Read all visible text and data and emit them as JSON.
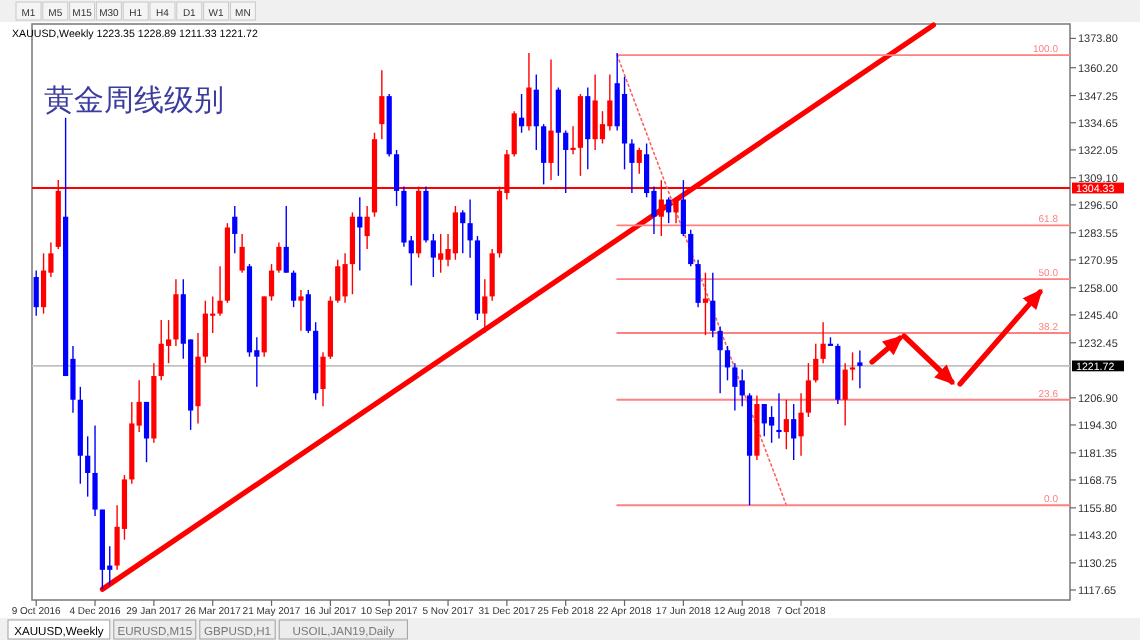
{
  "chart_data": {
    "type": "candlestick",
    "title": "黄金周线级别",
    "subtitle": "XAUUSD,Weekly  1223.35 1228.89 1211.33 1221.72",
    "annotations": [
      "M1",
      "M5",
      "M15",
      "M30",
      "H1",
      "H4",
      "D1",
      "W1",
      "MN",
      "XAUUSD,Weekly",
      "EURUSD,M15",
      "GBPUSD,H1",
      "USOIL,JAN19,Daily"
    ],
    "xlim": [
      "2016-10-05",
      "2019-06-20"
    ],
    "ylim": [
      1113.0,
      1380.5
    ],
    "xticks": [
      {
        "value": "2016-10-09",
        "label": "9 Oct 2016"
      },
      {
        "value": "2016-12-04",
        "label": "4 Dec 2016"
      },
      {
        "value": "2017-01-29",
        "label": "29 Jan 2017"
      },
      {
        "value": "2017-03-26",
        "label": "26 Mar 2017"
      },
      {
        "value": "2017-05-21",
        "label": "21 May 2017"
      },
      {
        "value": "2017-07-16",
        "label": "16 Jul 2017"
      },
      {
        "value": "2017-09-10",
        "label": "10 Sep 2017"
      },
      {
        "value": "2017-11-05",
        "label": "5 Nov 2017"
      },
      {
        "value": "2017-12-31",
        "label": "31 Dec 2017"
      },
      {
        "value": "2018-02-25",
        "label": "25 Feb 2018"
      },
      {
        "value": "2018-04-22",
        "label": "22 Apr 2018"
      },
      {
        "value": "2018-06-17",
        "label": "17 Jun 2018"
      },
      {
        "value": "2018-08-12",
        "label": "12 Aug 2018"
      },
      {
        "value": "2018-10-07",
        "label": "7 Oct 2018"
      }
    ],
    "yticks": [
      {
        "value": 1373.8,
        "label": "1373.80"
      },
      {
        "value": 1360.2,
        "label": "1360.20"
      },
      {
        "value": 1347.25,
        "label": "1347.25"
      },
      {
        "value": 1334.65,
        "label": "1334.65"
      },
      {
        "value": 1322.05,
        "label": "1322.05"
      },
      {
        "value": 1309.1,
        "label": "1309.10"
      },
      {
        "value": 1296.5,
        "label": "1296.50"
      },
      {
        "value": 1283.55,
        "label": "1283.55"
      },
      {
        "value": 1270.95,
        "label": "1270.95"
      },
      {
        "value": 1258.0,
        "label": "1258.00"
      },
      {
        "value": 1245.4,
        "label": "1245.40"
      },
      {
        "value": 1232.45,
        "label": "1232.45"
      },
      {
        "value": 1206.9,
        "label": "1206.90"
      },
      {
        "value": 1194.3,
        "label": "1194.30"
      },
      {
        "value": 1181.35,
        "label": "1181.35"
      },
      {
        "value": 1168.75,
        "label": "1168.75"
      },
      {
        "value": 1155.8,
        "label": "1155.80"
      },
      {
        "value": 1143.2,
        "label": "1143.20"
      },
      {
        "value": 1130.25,
        "label": "1130.25"
      },
      {
        "value": 1117.65,
        "label": "1117.65"
      }
    ],
    "ref_lines": [
      {
        "axis": "y",
        "value": 1304.33,
        "label": "1304.33",
        "color": "#ff0000"
      },
      {
        "axis": "y",
        "value": 1221.72,
        "label": "1221.72",
        "color": "#c0c0c0"
      }
    ],
    "x": [
      "2016-10-09",
      "2016-10-16",
      "2016-10-23",
      "2016-10-30",
      "2016-11-06",
      "2016-11-13",
      "2016-11-20",
      "2016-11-27",
      "2016-12-04",
      "2016-12-11",
      "2016-12-18",
      "2016-12-25",
      "2017-01-01",
      "2017-01-08",
      "2017-01-15",
      "2017-01-22",
      "2017-01-29",
      "2017-02-05",
      "2017-02-12",
      "2017-02-19",
      "2017-02-26",
      "2017-03-05",
      "2017-03-12",
      "2017-03-19",
      "2017-03-26",
      "2017-04-02",
      "2017-04-09",
      "2017-04-16",
      "2017-04-23",
      "2017-04-30",
      "2017-05-07",
      "2017-05-14",
      "2017-05-21",
      "2017-05-28",
      "2017-06-04",
      "2017-06-11",
      "2017-06-18",
      "2017-06-25",
      "2017-07-02",
      "2017-07-09",
      "2017-07-16",
      "2017-07-23",
      "2017-07-30",
      "2017-08-06",
      "2017-08-13",
      "2017-08-20",
      "2017-08-27",
      "2017-09-03",
      "2017-09-10",
      "2017-09-17",
      "2017-09-24",
      "2017-10-01",
      "2017-10-08",
      "2017-10-15",
      "2017-10-22",
      "2017-10-29",
      "2017-11-05",
      "2017-11-12",
      "2017-11-19",
      "2017-11-26",
      "2017-12-03",
      "2017-12-10",
      "2017-12-17",
      "2017-12-24",
      "2017-12-31",
      "2018-01-07",
      "2018-01-14",
      "2018-01-21",
      "2018-01-28",
      "2018-02-04",
      "2018-02-11",
      "2018-02-18",
      "2018-02-25",
      "2018-03-04",
      "2018-03-11",
      "2018-03-18",
      "2018-03-25",
      "2018-04-01",
      "2018-04-08",
      "2018-04-15",
      "2018-04-22",
      "2018-04-29",
      "2018-05-06",
      "2018-05-13",
      "2018-05-20",
      "2018-05-27",
      "2018-06-03",
      "2018-06-10",
      "2018-06-17",
      "2018-06-24",
      "2018-07-01",
      "2018-07-08",
      "2018-07-15",
      "2018-07-22",
      "2018-07-29",
      "2018-08-05",
      "2018-08-12",
      "2018-08-19",
      "2018-08-26",
      "2018-09-02",
      "2018-09-09",
      "2018-09-16",
      "2018-09-23",
      "2018-09-30",
      "2018-10-07",
      "2018-10-14",
      "2018-10-21",
      "2018-10-28",
      "2018-11-04",
      "2018-11-11",
      "2018-11-18",
      "2018-11-25",
      "2018-12-02"
    ],
    "ohlc": [
      [
        1263,
        1266,
        1245,
        1249
      ],
      [
        1249,
        1274,
        1246,
        1266
      ],
      [
        1265,
        1279,
        1263,
        1274
      ],
      [
        1277,
        1308,
        1276,
        1303
      ],
      [
        1291,
        1337,
        1217,
        1217
      ],
      [
        1225,
        1231,
        1200,
        1206
      ],
      [
        1206,
        1212,
        1167,
        1180
      ],
      [
        1180,
        1189,
        1161,
        1172
      ],
      [
        1172,
        1194,
        1152,
        1155
      ],
      [
        1155,
        1155,
        1118,
        1127
      ],
      [
        1129,
        1138,
        1120,
        1127
      ],
      [
        1129,
        1157,
        1127,
        1147
      ],
      [
        1146,
        1171,
        1141,
        1169
      ],
      [
        1169,
        1205,
        1167,
        1195
      ],
      [
        1194,
        1215,
        1191,
        1205
      ],
      [
        1205,
        1205,
        1177,
        1188
      ],
      [
        1188,
        1223,
        1186,
        1217
      ],
      [
        1217,
        1243,
        1215,
        1232
      ],
      [
        1231,
        1243,
        1223,
        1234
      ],
      [
        1234,
        1262,
        1231,
        1255
      ],
      [
        1255,
        1262,
        1225,
        1232
      ],
      [
        1234,
        1234,
        1192,
        1201
      ],
      [
        1203,
        1237,
        1195,
        1226
      ],
      [
        1226,
        1252,
        1223,
        1246
      ],
      [
        1245,
        1254,
        1237,
        1246
      ],
      [
        1246,
        1268,
        1245,
        1252
      ],
      [
        1252,
        1288,
        1251,
        1286
      ],
      [
        1291,
        1296,
        1274,
        1283
      ],
      [
        1266,
        1283,
        1265,
        1277
      ],
      [
        1268,
        1269,
        1226,
        1228
      ],
      [
        1229,
        1235,
        1212,
        1226
      ],
      [
        1228,
        1254,
        1226,
        1254
      ],
      [
        1254,
        1269,
        1252,
        1266
      ],
      [
        1266,
        1279,
        1265,
        1277
      ],
      [
        1277,
        1296,
        1265,
        1265
      ],
      [
        1265,
        1266,
        1249,
        1252
      ],
      [
        1252,
        1257,
        1238,
        1254
      ],
      [
        1255,
        1257,
        1237,
        1238
      ],
      [
        1238,
        1242,
        1206,
        1209
      ],
      [
        1211,
        1228,
        1203,
        1226
      ],
      [
        1226,
        1254,
        1225,
        1252
      ],
      [
        1252,
        1271,
        1251,
        1268
      ],
      [
        1254,
        1274,
        1251,
        1269
      ],
      [
        1269,
        1293,
        1255,
        1291
      ],
      [
        1291,
        1300,
        1266,
        1286
      ],
      [
        1282,
        1296,
        1276,
        1291
      ],
      [
        1293,
        1330,
        1291,
        1327
      ],
      [
        1334,
        1359,
        1327,
        1347
      ],
      [
        1347,
        1348,
        1319,
        1320
      ],
      [
        1320,
        1322,
        1296,
        1303
      ],
      [
        1303,
        1305,
        1277,
        1279
      ],
      [
        1280,
        1282,
        1259,
        1274
      ],
      [
        1274,
        1305,
        1272,
        1303
      ],
      [
        1303,
        1305,
        1279,
        1280
      ],
      [
        1280,
        1283,
        1263,
        1272
      ],
      [
        1271,
        1283,
        1265,
        1274
      ],
      [
        1271,
        1283,
        1268,
        1276
      ],
      [
        1274,
        1296,
        1271,
        1293
      ],
      [
        1293,
        1294,
        1274,
        1288
      ],
      [
        1288,
        1299,
        1272,
        1280
      ],
      [
        1280,
        1282,
        1243,
        1246
      ],
      [
        1246,
        1262,
        1237,
        1254
      ],
      [
        1254,
        1276,
        1252,
        1274
      ],
      [
        1274,
        1305,
        1272,
        1303
      ],
      [
        1302,
        1322,
        1299,
        1320
      ],
      [
        1320,
        1340,
        1319,
        1339
      ],
      [
        1337,
        1348,
        1330,
        1333
      ],
      [
        1333,
        1367,
        1331,
        1351
      ],
      [
        1350,
        1357,
        1322,
        1333
      ],
      [
        1333,
        1334,
        1306,
        1316
      ],
      [
        1316,
        1364,
        1308,
        1331
      ],
      [
        1350,
        1351,
        1310,
        1330
      ],
      [
        1330,
        1331,
        1302,
        1322
      ],
      [
        1322,
        1333,
        1320,
        1323
      ],
      [
        1323,
        1348,
        1310,
        1347
      ],
      [
        1347,
        1351,
        1313,
        1327
      ],
      [
        1327,
        1357,
        1322,
        1345
      ],
      [
        1327,
        1340,
        1325,
        1334
      ],
      [
        1333,
        1357,
        1331,
        1345
      ],
      [
        1353,
        1367,
        1331,
        1333
      ],
      [
        1348,
        1356,
        1313,
        1325
      ],
      [
        1325,
        1327,
        1302,
        1316
      ],
      [
        1316,
        1323,
        1311,
        1322
      ],
      [
        1320,
        1325,
        1300,
        1302
      ],
      [
        1303,
        1305,
        1283,
        1291
      ],
      [
        1291,
        1308,
        1282,
        1299
      ],
      [
        1299,
        1300,
        1288,
        1293
      ],
      [
        1293,
        1300,
        1288,
        1299
      ],
      [
        1299,
        1308,
        1282,
        1283
      ],
      [
        1283,
        1285,
        1268,
        1269
      ],
      [
        1269,
        1271,
        1249,
        1251
      ],
      [
        1251,
        1265,
        1236,
        1253
      ],
      [
        1252,
        1265,
        1235,
        1238
      ],
      [
        1238,
        1240,
        1209,
        1229
      ],
      [
        1229,
        1231,
        1215,
        1221
      ],
      [
        1221,
        1223,
        1201,
        1212
      ],
      [
        1215,
        1220,
        1203,
        1208
      ],
      [
        1208,
        1209,
        1157,
        1180
      ],
      [
        1180,
        1208,
        1178,
        1204
      ],
      [
        1204,
        1204,
        1189,
        1195
      ],
      [
        1198,
        1203,
        1186,
        1194
      ],
      [
        1192,
        1209,
        1188,
        1191
      ],
      [
        1191,
        1206,
        1183,
        1197
      ],
      [
        1197,
        1204,
        1178,
        1188
      ],
      [
        1189,
        1209,
        1180,
        1200
      ],
      [
        1200,
        1223,
        1198,
        1215
      ],
      [
        1215,
        1232,
        1214,
        1225
      ],
      [
        1225,
        1242,
        1223,
        1232
      ],
      [
        1232,
        1235,
        1231,
        1231
      ],
      [
        1231,
        1232,
        1204,
        1206
      ],
      [
        1206,
        1223,
        1194,
        1220
      ],
      [
        1220,
        1228,
        1215,
        1221
      ],
      [
        1223.35,
        1228.89,
        1211.33,
        1221.72
      ]
    ],
    "colors": [
      "#0000ff",
      "#ff0000",
      "#ff0000",
      "#ff0000",
      "#0000ff",
      "#0000ff",
      "#0000ff",
      "#0000ff",
      "#0000ff",
      "#0000ff",
      "#0000ff",
      "#ff0000",
      "#ff0000",
      "#ff0000",
      "#ff0000",
      "#0000ff",
      "#ff0000",
      "#ff0000",
      "#ff0000",
      "#ff0000",
      "#0000ff",
      "#0000ff",
      "#ff0000",
      "#ff0000",
      "#ff0000",
      "#ff0000",
      "#ff0000",
      "#0000ff",
      "#ff0000",
      "#0000ff",
      "#0000ff",
      "#ff0000",
      "#ff0000",
      "#ff0000",
      "#0000ff",
      "#0000ff",
      "#ff0000",
      "#0000ff",
      "#0000ff",
      "#ff0000",
      "#ff0000",
      "#ff0000",
      "#ff0000",
      "#ff0000",
      "#0000ff",
      "#ff0000",
      "#ff0000",
      "#ff0000",
      "#0000ff",
      "#0000ff",
      "#0000ff",
      "#0000ff",
      "#ff0000",
      "#0000ff",
      "#0000ff",
      "#ff0000",
      "#ff0000",
      "#ff0000",
      "#0000ff",
      "#0000ff",
      "#0000ff",
      "#ff0000",
      "#ff0000",
      "#ff0000",
      "#ff0000",
      "#ff0000",
      "#0000ff",
      "#ff0000",
      "#0000ff",
      "#0000ff",
      "#ff0000",
      "#0000ff",
      "#0000ff",
      "#ff0000",
      "#ff0000",
      "#0000ff",
      "#ff0000",
      "#ff0000",
      "#ff0000",
      "#0000ff",
      "#0000ff",
      "#0000ff",
      "#ff0000",
      "#0000ff",
      "#0000ff",
      "#ff0000",
      "#0000ff",
      "#ff0000",
      "#0000ff",
      "#0000ff",
      "#0000ff",
      "#ff0000",
      "#0000ff",
      "#0000ff",
      "#0000ff",
      "#0000ff",
      "#0000ff",
      "#0000ff",
      "#ff0000",
      "#0000ff",
      "#0000ff",
      "#0000ff",
      "#ff0000",
      "#0000ff",
      "#ff0000",
      "#ff0000",
      "#ff0000",
      "#ff0000",
      "#0000ff",
      "#0000ff",
      "#ff0000",
      "#ff0000",
      "#0000ff"
    ],
    "series": [
      {
        "type": "line",
        "x": [
          "2016-12-11",
          "2019-02-10"
        ],
        "values": [
          1118,
          1380
        ],
        "color": "#ff0000",
        "line_style": "solid"
      },
      {
        "type": "line",
        "x": [
          "2018-04-15",
          "2018-09-23"
        ],
        "values": [
          1366,
          1157
        ],
        "color": "#ff6060",
        "line_style": "dotted"
      },
      {
        "type": "line",
        "name": "100.0",
        "x": [
          "2018-04-15",
          "2019-06-20"
        ],
        "values": [
          1366,
          1366
        ],
        "color": "#ff8080",
        "line_style": "solid"
      },
      {
        "type": "line",
        "name": "61.8",
        "x": [
          "2018-04-15",
          "2019-06-20"
        ],
        "values": [
          1287,
          1287
        ],
        "color": "#ff8080",
        "line_style": "solid"
      },
      {
        "type": "line",
        "name": "50.0",
        "x": [
          "2018-04-15",
          "2019-06-20"
        ],
        "values": [
          1262,
          1262
        ],
        "color": "#ff8080",
        "line_style": "solid"
      },
      {
        "type": "line",
        "name": "38.2",
        "x": [
          "2018-04-15",
          "2019-06-20"
        ],
        "values": [
          1237,
          1237
        ],
        "color": "#ff8080",
        "line_style": "solid"
      },
      {
        "type": "line",
        "name": "23.6",
        "x": [
          "2018-04-15",
          "2019-06-20"
        ],
        "values": [
          1206,
          1206
        ],
        "color": "#ff8080",
        "line_style": "solid"
      },
      {
        "type": "line",
        "name": "0.0",
        "x": [
          "2018-04-15",
          "2019-06-20"
        ],
        "values": [
          1157,
          1157
        ],
        "color": "#ff8080",
        "line_style": "solid"
      }
    ]
  }
}
